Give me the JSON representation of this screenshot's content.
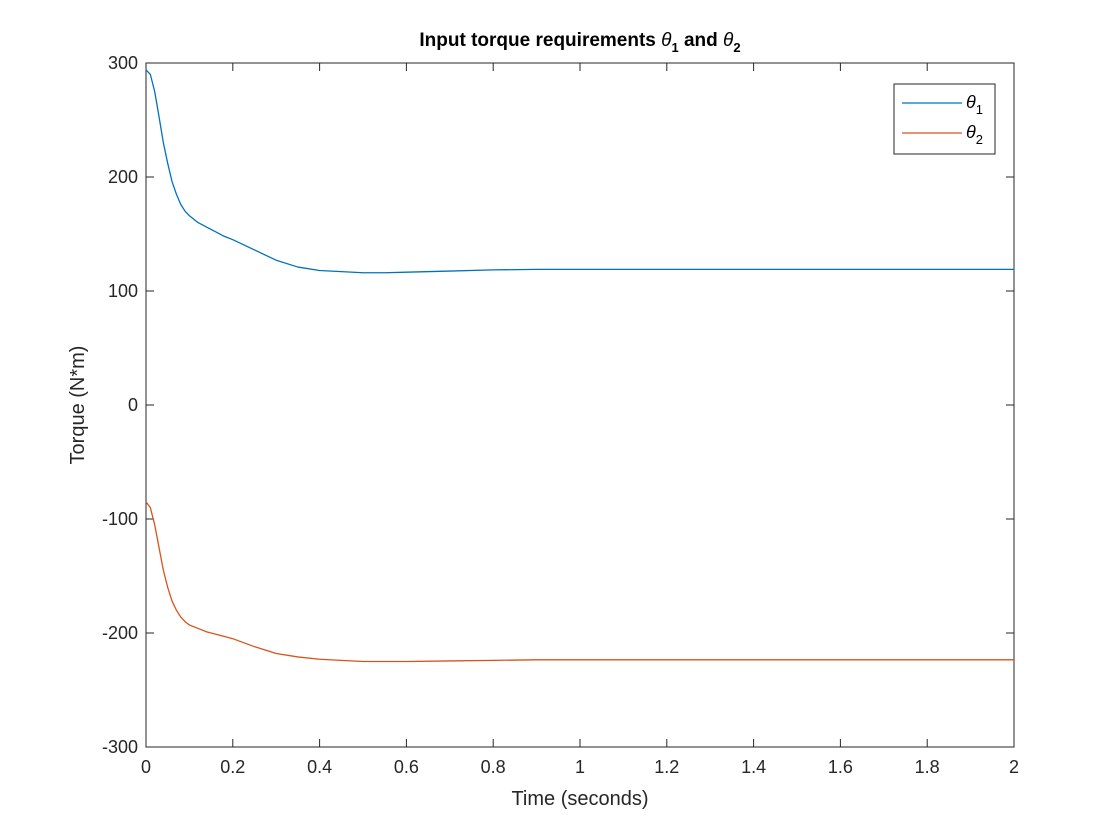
{
  "chart_data": {
    "type": "line",
    "title": {
      "prefix": "Input torque requirements ",
      "sym1": "θ",
      "sub1": "1",
      "middle": " and ",
      "sym2": "θ",
      "sub2": "2"
    },
    "xlabel": "Time (seconds)",
    "ylabel": "Torque (N*m)",
    "xlim": [
      0,
      2
    ],
    "ylim": [
      -300,
      300
    ],
    "xticks": [
      0,
      0.2,
      0.4,
      0.6,
      0.8,
      1,
      1.2,
      1.4,
      1.6,
      1.8,
      2
    ],
    "xtick_labels": [
      "0",
      "0.2",
      "0.4",
      "0.6",
      "0.8",
      "1",
      "1.2",
      "1.4",
      "1.6",
      "1.8",
      "2"
    ],
    "yticks": [
      -300,
      -200,
      -100,
      0,
      100,
      200,
      300
    ],
    "ytick_labels": [
      "-300",
      "-200",
      "-100",
      "0",
      "100",
      "200",
      "300"
    ],
    "grid": false,
    "legend_position": "top-right",
    "series": [
      {
        "name_symbol": "θ",
        "name_sub": "1",
        "color": "#0072BD",
        "x": [
          0,
          0.01,
          0.02,
          0.03,
          0.04,
          0.05,
          0.06,
          0.07,
          0.08,
          0.09,
          0.1,
          0.12,
          0.14,
          0.16,
          0.18,
          0.2,
          0.25,
          0.3,
          0.35,
          0.4,
          0.45,
          0.5,
          0.55,
          0.6,
          0.7,
          0.8,
          0.9,
          1.0,
          1.2,
          1.4,
          1.6,
          1.8,
          2.0
        ],
        "y": [
          294,
          290,
          275,
          253,
          230,
          212,
          196,
          185,
          176,
          170,
          166,
          160,
          156,
          152,
          148,
          145,
          136,
          127,
          121,
          118,
          117,
          116,
          116,
          116.5,
          117.5,
          118.5,
          119,
          119,
          119,
          119,
          119,
          119,
          119
        ]
      },
      {
        "name_symbol": "θ",
        "name_sub": "2",
        "color": "#D95319",
        "x": [
          0,
          0.01,
          0.02,
          0.03,
          0.04,
          0.05,
          0.06,
          0.07,
          0.08,
          0.09,
          0.1,
          0.12,
          0.14,
          0.16,
          0.18,
          0.2,
          0.25,
          0.3,
          0.35,
          0.4,
          0.45,
          0.5,
          0.55,
          0.6,
          0.7,
          0.8,
          0.9,
          1.0,
          1.2,
          1.4,
          1.6,
          1.8,
          2.0
        ],
        "y": [
          -85,
          -90,
          -105,
          -125,
          -145,
          -160,
          -172,
          -180,
          -186,
          -190,
          -193,
          -196,
          -199,
          -201,
          -203,
          -205,
          -212,
          -218,
          -221,
          -223,
          -224,
          -225,
          -225,
          -225,
          -224.5,
          -224,
          -223.5,
          -223.5,
          -223.5,
          -223.5,
          -223.5,
          -223.5,
          -223.5
        ]
      }
    ]
  }
}
